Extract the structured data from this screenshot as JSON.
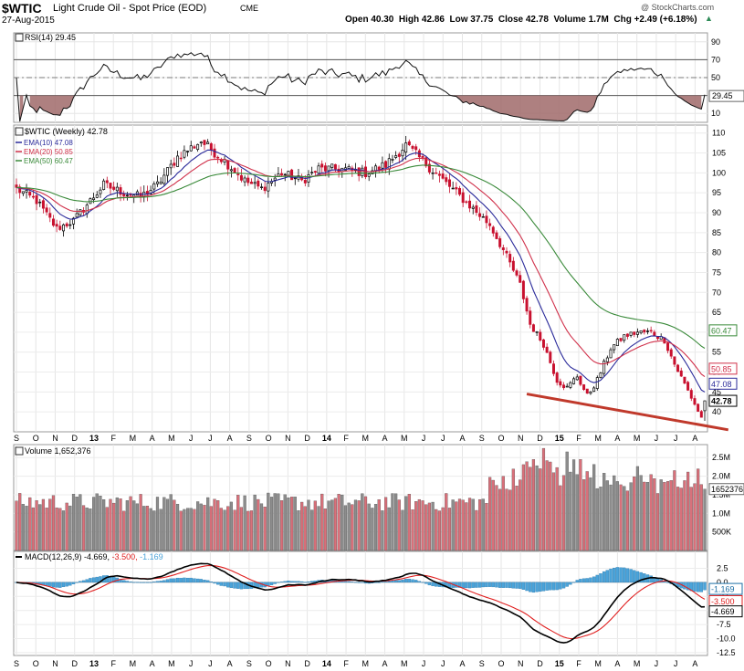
{
  "header": {
    "symbol": "$WTIC",
    "name": "Light Crude Oil - Spot Price (EOD)",
    "exchange": "CME",
    "date": "27-Aug-2015",
    "watermark": "@ StockCharts.com",
    "stats": "Open 40.30  High 42.86  Low 37.75  Close 42.78  Volume 1.7M  Chg +2.49 (+6.18%)",
    "chg_arrow": "▲"
  },
  "colors": {
    "up": "#000000",
    "down": "#c8102e",
    "ema10": "#2a2a9a",
    "ema20": "#d0304a",
    "ema50": "#3a8a3a",
    "vol_up": "#8c8c8c",
    "vol_down": "#d9707a",
    "hist": "#4aa3d9",
    "macd": "#000000",
    "signal": "#e02020",
    "rsi_fill": "#a06a6a",
    "trend": "#c0392b"
  },
  "chart_data": [
    {
      "panel": "rsi",
      "type": "line",
      "label": "RSI(14) 29.45",
      "last": 29.45,
      "ylim": [
        0,
        100
      ],
      "y_ticks": [
        10,
        30,
        50,
        70,
        90
      ],
      "levels": [
        30,
        50,
        70
      ]
    },
    {
      "panel": "price",
      "type": "candlestick",
      "title": "$WTIC (Weekly) 42.78",
      "ylim": [
        35,
        112
      ],
      "y_ticks": [
        40,
        45,
        50,
        55,
        60,
        65,
        70,
        75,
        80,
        85,
        90,
        95,
        100,
        105,
        110
      ],
      "x_labels": [
        "S",
        "O",
        "N",
        "D",
        "13",
        "F",
        "M",
        "A",
        "M",
        "J",
        "J",
        "A",
        "S",
        "O",
        "N",
        "D",
        "14",
        "F",
        "M",
        "A",
        "M",
        "J",
        "J",
        "A",
        "S",
        "O",
        "N",
        "D",
        "15",
        "F",
        "M",
        "A",
        "M",
        "J",
        "J",
        "A"
      ],
      "close_anchors": [
        [
          0,
          96
        ],
        [
          6,
          93
        ],
        [
          12,
          86
        ],
        [
          17,
          88
        ],
        [
          26,
          97
        ],
        [
          32,
          95
        ],
        [
          37,
          94
        ],
        [
          42,
          97
        ],
        [
          48,
          104
        ],
        [
          55,
          108
        ],
        [
          62,
          103
        ],
        [
          68,
          98
        ],
        [
          73,
          96
        ],
        [
          79,
          100
        ],
        [
          85,
          98
        ],
        [
          90,
          101
        ],
        [
          97,
          101
        ],
        [
          104,
          100
        ],
        [
          110,
          102
        ],
        [
          116,
          107
        ],
        [
          121,
          103
        ],
        [
          126,
          99
        ],
        [
          131,
          95
        ],
        [
          136,
          91
        ],
        [
          141,
          87
        ],
        [
          146,
          79
        ],
        [
          150,
          72
        ],
        [
          153,
          62
        ],
        [
          157,
          57
        ],
        [
          161,
          48
        ],
        [
          164,
          46
        ],
        [
          167,
          49
        ],
        [
          170,
          44
        ],
        [
          173,
          48
        ],
        [
          177,
          56
        ],
        [
          181,
          59
        ],
        [
          185,
          60
        ],
        [
          189,
          60
        ],
        [
          193,
          58
        ],
        [
          196,
          52
        ],
        [
          199,
          47
        ],
        [
          202,
          42
        ],
        [
          204,
          38.5
        ],
        [
          205,
          42.78
        ]
      ],
      "series": [
        {
          "name": "EMA(10) 47.08",
          "last": 47.08
        },
        {
          "name": "EMA(20) 50.85",
          "last": 50.85
        },
        {
          "name": "EMA(50) 60.47",
          "last": 60.47
        }
      ],
      "last_close": 42.78,
      "trendline": {
        "from": {
          "week": 152,
          "price": 44.5
        },
        "to": {
          "week": 212,
          "price": 35.5
        }
      }
    },
    {
      "panel": "volume",
      "type": "bar",
      "label": "Volume 1,652,376",
      "last": 1652376,
      "last_label": "1652376",
      "ylim": [
        0,
        2850000
      ],
      "y_tick_values": [
        500000,
        1000000,
        1500000,
        2000000,
        2500000
      ],
      "y_tick_labels": [
        "500K",
        "1.0M",
        "1.5M",
        "2.0M",
        "2.5M"
      ]
    },
    {
      "panel": "macd",
      "type": "line",
      "label": "MACD(12,26,9)",
      "values": {
        "macd": -4.669,
        "signal": -3.5,
        "hist": -1.169
      },
      "value_labels": [
        "-4.669",
        "-3.500",
        "-1.169"
      ],
      "ylim": [
        -13,
        5.5
      ],
      "y_ticks": [
        2.5,
        0.0,
        -2.5,
        -5.0,
        -7.5,
        -10.0,
        -12.5
      ],
      "y_tick_labels": [
        "2.5",
        "0.0",
        "-2.5",
        "-5.0",
        "-7.5",
        "-10.0",
        "-12.5"
      ]
    }
  ]
}
